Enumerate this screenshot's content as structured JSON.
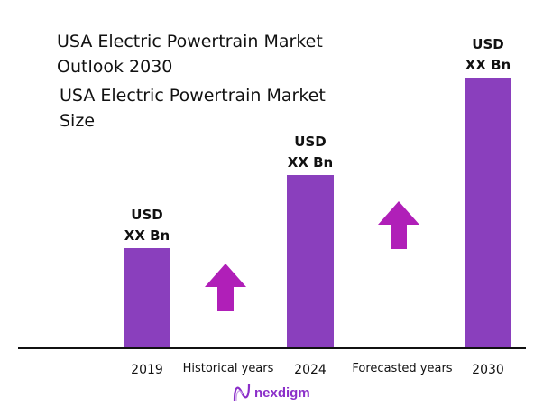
{
  "chart_data": {
    "type": "bar",
    "title": "USA Electric Powertrain Market Outlook 2030",
    "subtitle": "USA Electric Powertrain Market Size",
    "categories": [
      "2019",
      "2024",
      "2030"
    ],
    "values": [
      0.37,
      0.64,
      1.0
    ],
    "value_note_labels": [
      "USD XX Bn",
      "USD XX Bn",
      "USD XX Bn"
    ],
    "data_labels": [
      [
        "USD",
        "XX Bn"
      ],
      [
        "USD",
        "XX Bn"
      ],
      [
        "USD",
        "XX Bn"
      ]
    ],
    "period_labels": [
      "Historical years",
      "Forecasted years"
    ],
    "grid": false,
    "legend": "none",
    "colors": {
      "bar": "#8a3fbd",
      "arrow": "#b01fb8",
      "axis": "#111111",
      "brand": "#8b2fc9"
    }
  },
  "brand": {
    "name": "nexdigm"
  }
}
